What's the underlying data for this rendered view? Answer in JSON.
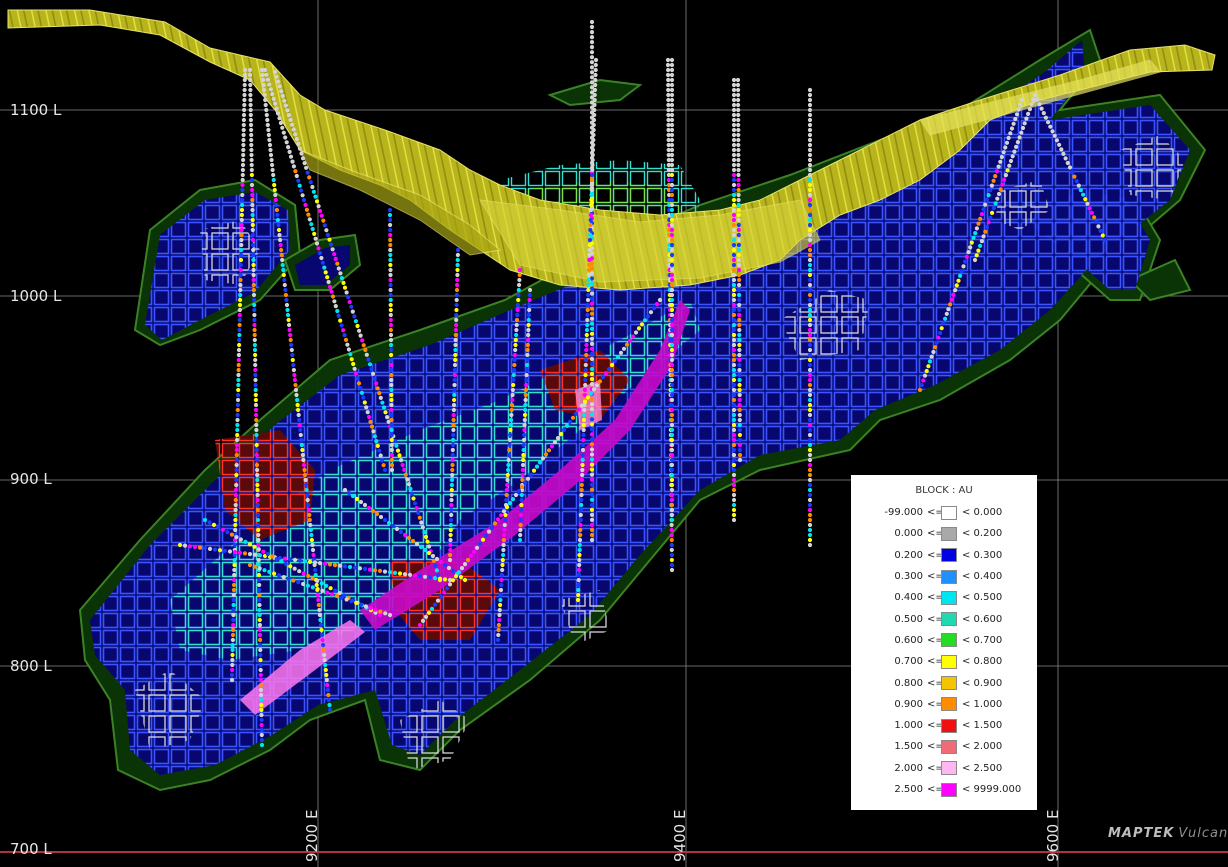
{
  "viewer": {
    "northing_lines": [
      {
        "label": "1100 L"
      },
      {
        "label": "1000 L"
      },
      {
        "label": "900 L"
      },
      {
        "label": "800 L"
      },
      {
        "label": "700 L"
      }
    ],
    "easting_lines": [
      {
        "label": "9200 E"
      },
      {
        "label": "9400 E"
      },
      {
        "label": "9600 E"
      }
    ],
    "colors": {
      "background": "#000000",
      "grid": "#8a8a8a",
      "baseline": "#b0323a",
      "pit_surface": "#c8c623",
      "envelope": "#0c3a08",
      "envelope_edge": "#3f8a2a",
      "ore_body": "#0a0a8f",
      "drillhole": "#cfcfcf"
    }
  },
  "legend": {
    "title": "BLOCK : AU",
    "entries": [
      {
        "low": "-99.000",
        "op": "<=",
        "high": "< 0.000",
        "color": "#ffffff"
      },
      {
        "low": "0.000",
        "op": "<=",
        "high": "< 0.200",
        "color": "#a9a9a9"
      },
      {
        "low": "0.200",
        "op": "<=",
        "high": "< 0.300",
        "color": "#0000e0"
      },
      {
        "low": "0.300",
        "op": "<=",
        "high": "< 0.400",
        "color": "#1e90ff"
      },
      {
        "low": "0.400",
        "op": "<=",
        "high": "< 0.500",
        "color": "#00e5f0"
      },
      {
        "low": "0.500",
        "op": "<=",
        "high": "< 0.600",
        "color": "#1fd9b0"
      },
      {
        "low": "0.600",
        "op": "<=",
        "high": "< 0.700",
        "color": "#22dd22"
      },
      {
        "low": "0.700",
        "op": "<=",
        "high": "< 0.800",
        "color": "#ffff00"
      },
      {
        "low": "0.800",
        "op": "<=",
        "high": "< 0.900",
        "color": "#f5c400"
      },
      {
        "low": "0.900",
        "op": "<=",
        "high": "< 1.000",
        "color": "#ff8c00"
      },
      {
        "low": "1.000",
        "op": "<=",
        "high": "< 1.500",
        "color": "#ee1111"
      },
      {
        "low": "1.500",
        "op": "<=",
        "high": "< 2.000",
        "color": "#f06a78"
      },
      {
        "low": "2.000",
        "op": "<=",
        "high": "< 2.500",
        "color": "#ffb6f0"
      },
      {
        "low": "2.500",
        "op": "<=",
        "high": "< 9999.000",
        "color": "#ff00ff"
      }
    ]
  },
  "brand": {
    "name": "MAPTEK",
    "product": "Vulcan"
  }
}
